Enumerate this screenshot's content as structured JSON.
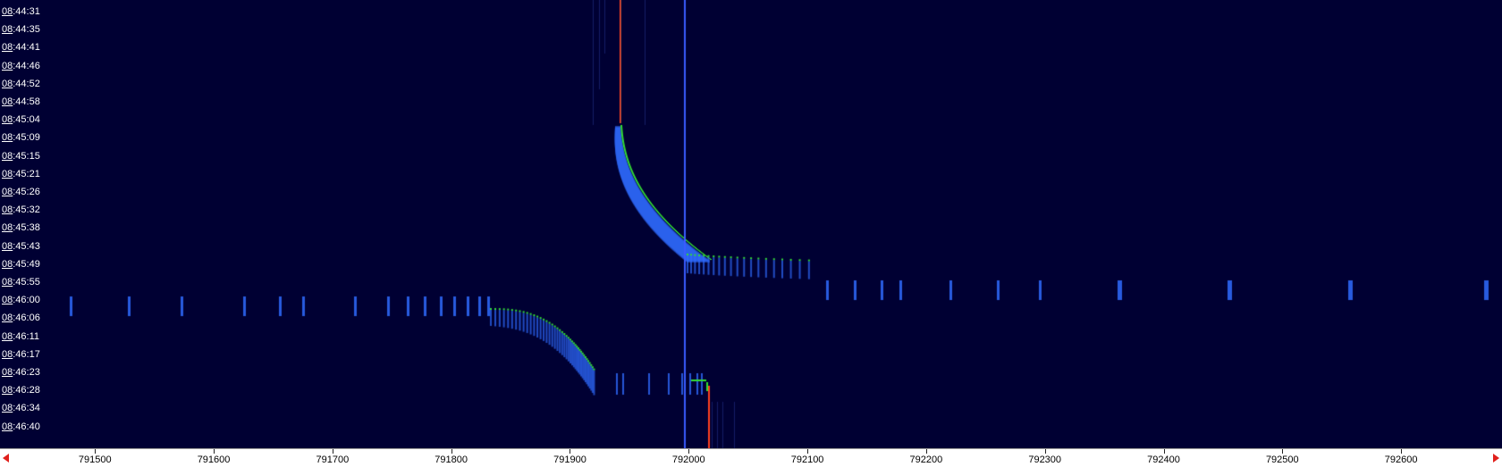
{
  "waterfall": {
    "background": "#000033",
    "marker_color": "#3a5cff",
    "marker_freq": 791996,
    "trace_colors": {
      "strong": "#ff4020",
      "mid": "#33dd33",
      "weak": "#2f6bff"
    }
  },
  "time_axis": {
    "labels": [
      "08:44:31",
      "08:44:35",
      "08:44:41",
      "08:44:46",
      "08:44:52",
      "08:44:58",
      "08:45:04",
      "08:45:09",
      "08:45:15",
      "08:45:21",
      "08:45:26",
      "08:45:32",
      "08:45:38",
      "08:45:43",
      "08:45:49",
      "08:45:55",
      "08:46:00",
      "08:46:06",
      "08:46:11",
      "08:46:17",
      "08:46:23",
      "08:46:28",
      "08:46:34",
      "08:46:40"
    ]
  },
  "freq_axis": {
    "labels": [
      "791500",
      "791600",
      "791700",
      "791800",
      "791900",
      "792000",
      "792100",
      "792200",
      "792300",
      "792400",
      "792500",
      "792600"
    ],
    "values": [
      791500,
      791600,
      791700,
      791800,
      791900,
      792000,
      792100,
      792200,
      792300,
      792400,
      792500,
      792600
    ],
    "min": 791420,
    "max": 792685,
    "scroll_left_icon": "arrow-left-icon",
    "scroll_right_icon": "arrow-right-icon"
  }
}
